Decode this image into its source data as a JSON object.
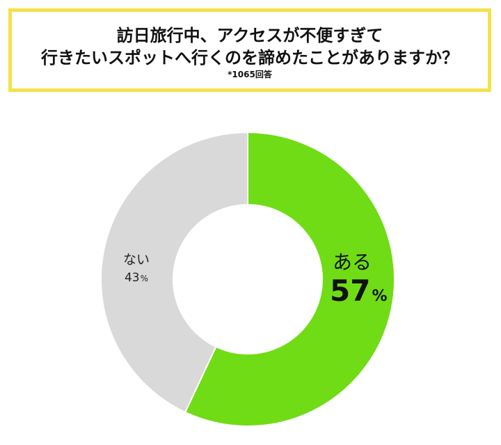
{
  "header": {
    "title_line1": "訪日旅行中、アクセスが不便すぎて",
    "title_line2": "行きたいスポットへ行くのを諦めたことがありますか？",
    "subtitle": "*1065回答"
  },
  "chart_data": {
    "type": "pie",
    "title": "訪日旅行中、アクセスが不便すぎて行きたいスポットへ行くのを諦めたことがありますか？",
    "subtitle": "*1065回答",
    "categories": [
      "ある",
      "ない"
    ],
    "values": [
      57,
      43
    ],
    "series": [
      {
        "values": [
          57,
          43
        ]
      }
    ],
    "slice_labels": [
      {
        "name": "ある",
        "value": "57",
        "unit": "%"
      },
      {
        "name": "ない",
        "value": "43",
        "unit": "%"
      }
    ],
    "colors": [
      "#6fdc15",
      "#d9d9d9"
    ],
    "donut": true,
    "start": "top",
    "direction": "clockwise"
  }
}
